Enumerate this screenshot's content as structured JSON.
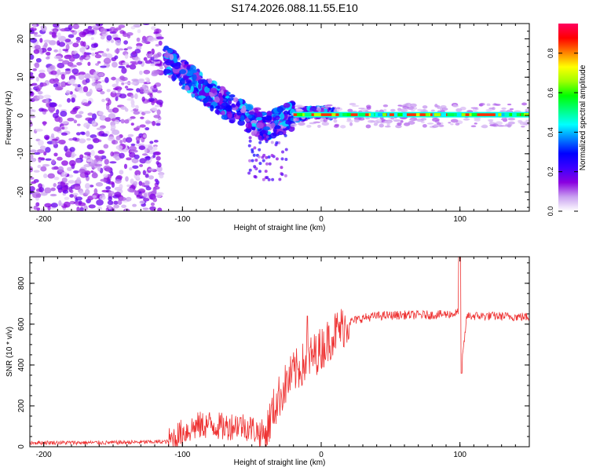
{
  "page_title": "S174.2026.088.11.55.E10",
  "chart_data": [
    {
      "type": "heatmap",
      "title": "S174.2026.088.11.55.E10",
      "xlabel": "Height of straight line (km)",
      "ylabel": "Frequency (Hz)",
      "xlim": [
        -210,
        150
      ],
      "ylim": [
        -25,
        24
      ],
      "xticks": [
        -200,
        -100,
        0,
        100
      ],
      "yticks": [
        20,
        10,
        0,
        -10,
        -20
      ],
      "colorbar": {
        "label": "Normalized spectral amplitude",
        "range": [
          0,
          0.95
        ],
        "ticks": [
          0.0,
          0.2,
          0.4,
          0.6,
          0.8
        ],
        "colors": [
          "#ffffff",
          "#c9a0f0",
          "#8a00e0",
          "#3c00ff",
          "#0000ff",
          "#0080ff",
          "#00ffff",
          "#00ff80",
          "#00ff00",
          "#a0ff00",
          "#ffff00",
          "#ff8000",
          "#ff0000",
          "#ff0060"
        ]
      },
      "features": [
        {
          "name": "noise",
          "x_range": [
            -210,
            -115
          ],
          "y_range": [
            -25,
            24
          ],
          "amplitude": 0.1
        },
        {
          "name": "descending-band",
          "points": [
            [
              -113,
              15
            ],
            [
              -100,
              11
            ],
            [
              -85,
              7
            ],
            [
              -70,
              3
            ],
            [
              -55,
              0
            ],
            [
              -40,
              -3
            ],
            [
              -20,
              0
            ],
            [
              0,
              1
            ],
            [
              10,
              0.2
            ]
          ]
        },
        {
          "name": "tone",
          "x_range": [
            -20,
            150
          ],
          "y": 0.2,
          "amplitude": 0.85
        }
      ]
    },
    {
      "type": "line",
      "xlabel": "Height of straight line (km)",
      "ylabel": "SNR (10 * v/v)",
      "xlim": [
        -210,
        150
      ],
      "ylim": [
        0,
        930
      ],
      "xticks": [
        -200,
        -100,
        0,
        100
      ],
      "yticks": [
        0,
        200,
        400,
        600,
        800
      ],
      "series": [
        {
          "name": "SNR",
          "color": "#ee3333",
          "x": [
            -210,
            -150,
            -110,
            -100,
            -90,
            -80,
            -70,
            -60,
            -50,
            -45,
            -40,
            -35,
            -30,
            -25,
            -20,
            -10,
            0,
            10,
            20,
            30,
            40,
            60,
            80,
            95,
            100,
            101,
            105,
            120,
            150
          ],
          "y": [
            20,
            20,
            25,
            70,
            100,
            110,
            95,
            110,
            90,
            70,
            60,
            170,
            250,
            310,
            360,
            420,
            480,
            560,
            610,
            630,
            640,
            645,
            645,
            650,
            660,
            380,
            640,
            640,
            635
          ]
        }
      ]
    }
  ]
}
